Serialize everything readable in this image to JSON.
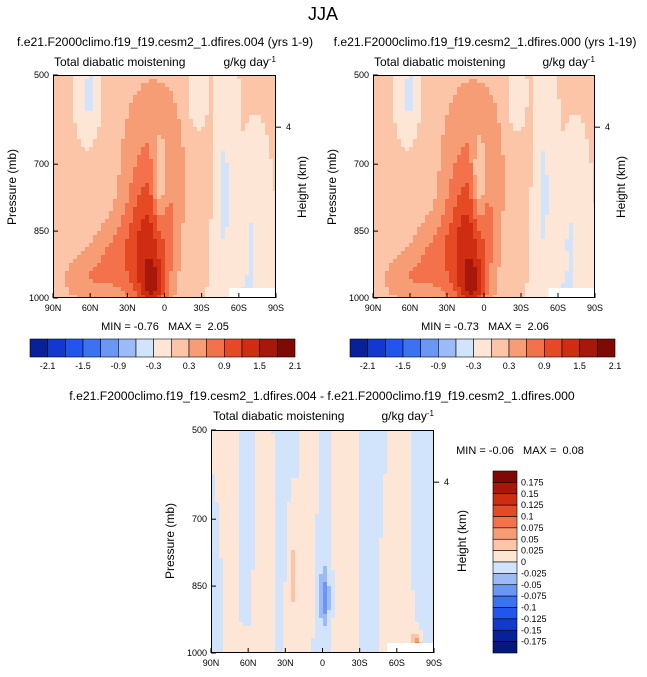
{
  "figure_title": "JJA",
  "chart_data": [
    {
      "type": "contour",
      "id": "top_left",
      "title": "f.e21.F2000climo.f19_f19.cesm2_1.dfires.004 (yrs 1-9)",
      "left_label": "Total diabatic moistening",
      "units_label": "g/kg day",
      "units_exp": "-1",
      "xlabel": "",
      "ylabel": "Pressure (mb)",
      "ylabel_right": "Height (km)",
      "x_ticks": [
        "90N",
        "60N",
        "30N",
        "0",
        "30S",
        "60S",
        "90S"
      ],
      "x_range": [
        90,
        -90
      ],
      "y_ticks": [
        500,
        700,
        850,
        1000
      ],
      "y_range": [
        500,
        1000
      ],
      "height_ticks": [
        4
      ],
      "height_tick_pressure": 617,
      "stats": "MIN = -0.76   MAX =  2.05",
      "levels": [
        -2.1,
        -1.8,
        -1.5,
        -1.2,
        -0.9,
        -0.6,
        -0.3,
        0,
        0.3,
        0.6,
        0.9,
        1.2,
        1.5,
        1.8,
        2.1
      ],
      "blobs": [
        {
          "lat": 8,
          "p": 650,
          "slat": 24,
          "sp": 150,
          "amp": 0.45
        },
        {
          "lat": 12,
          "p": 885,
          "slat": 14,
          "sp": 120,
          "amp": 1.15
        },
        {
          "lat": 10,
          "p": 975,
          "slat": 7,
          "sp": 40,
          "amp": 0.7
        },
        {
          "lat": 42,
          "p": 920,
          "slat": 16,
          "sp": 70,
          "amp": 0.55
        },
        {
          "lat": 68,
          "p": 960,
          "slat": 14,
          "sp": 40,
          "amp": 0.4
        },
        {
          "lat": 4,
          "p": 740,
          "slat": 4,
          "sp": 70,
          "amp": -0.8
        },
        {
          "lat": -48,
          "p": 760,
          "slat": 5,
          "sp": 150,
          "amp": -0.4
        },
        {
          "lat": -70,
          "p": 880,
          "slat": 5,
          "sp": 90,
          "amp": -0.35
        },
        {
          "lat": 60,
          "p": 545,
          "slat": 5,
          "sp": 55,
          "amp": -0.45
        },
        {
          "lat": -25,
          "p": 560,
          "slat": 6,
          "sp": 60,
          "amp": -0.3
        },
        {
          "lat": -60,
          "p": 985,
          "slat": 10,
          "sp": 30,
          "amp": -0.25
        }
      ]
    },
    {
      "type": "contour",
      "id": "top_right",
      "title": "f.e21.F2000climo.f19_f19.cesm2_1.dfires.000 (yrs 1-19)",
      "left_label": "Total diabatic moistening",
      "units_label": "g/kg day",
      "units_exp": "-1",
      "xlabel": "",
      "ylabel": "Pressure (mb)",
      "ylabel_right": "Height (km)",
      "x_ticks": [
        "90N",
        "60N",
        "30N",
        "0",
        "30S",
        "60S",
        "90S"
      ],
      "x_range": [
        90,
        -90
      ],
      "y_ticks": [
        500,
        700,
        850,
        1000
      ],
      "y_range": [
        500,
        1000
      ],
      "height_ticks": [
        4
      ],
      "height_tick_pressure": 617,
      "stats": "MIN = -0.73   MAX =  2.06",
      "levels": [
        -2.1,
        -1.8,
        -1.5,
        -1.2,
        -0.9,
        -0.6,
        -0.3,
        0,
        0.3,
        0.6,
        0.9,
        1.2,
        1.5,
        1.8,
        2.1
      ],
      "blobs": [
        {
          "lat": 8,
          "p": 650,
          "slat": 24,
          "sp": 150,
          "amp": 0.45
        },
        {
          "lat": 12,
          "p": 885,
          "slat": 14,
          "sp": 120,
          "amp": 1.15
        },
        {
          "lat": 10,
          "p": 975,
          "slat": 7,
          "sp": 40,
          "amp": 0.72
        },
        {
          "lat": 42,
          "p": 920,
          "slat": 16,
          "sp": 70,
          "amp": 0.55
        },
        {
          "lat": 68,
          "p": 960,
          "slat": 14,
          "sp": 40,
          "amp": 0.4
        },
        {
          "lat": 4,
          "p": 740,
          "slat": 4,
          "sp": 70,
          "amp": -0.78
        },
        {
          "lat": -48,
          "p": 760,
          "slat": 5,
          "sp": 150,
          "amp": -0.4
        },
        {
          "lat": -70,
          "p": 880,
          "slat": 5,
          "sp": 90,
          "amp": -0.35
        },
        {
          "lat": 60,
          "p": 545,
          "slat": 5,
          "sp": 55,
          "amp": -0.45
        },
        {
          "lat": -25,
          "p": 560,
          "slat": 6,
          "sp": 60,
          "amp": -0.3
        },
        {
          "lat": -60,
          "p": 985,
          "slat": 10,
          "sp": 30,
          "amp": -0.25
        }
      ]
    },
    {
      "type": "contour",
      "id": "difference",
      "title": "f.e21.F2000climo.f19_f19.cesm2_1.dfires.004 - f.e21.F2000climo.f19_f19.cesm2_1.dfires.000",
      "left_label": "Total diabatic moistening",
      "units_label": "g/kg day",
      "units_exp": "-1",
      "xlabel": "",
      "ylabel": "Pressure (mb)",
      "ylabel_right": "Height (km)",
      "x_ticks": [
        "90N",
        "60N",
        "30N",
        "0",
        "30S",
        "60S",
        "90S"
      ],
      "x_range": [
        90,
        -90
      ],
      "y_ticks": [
        500,
        700,
        850,
        1000
      ],
      "y_range": [
        500,
        1000
      ],
      "height_ticks": [
        4
      ],
      "height_tick_pressure": 617,
      "stats": "MIN = -0.06   MAX =  0.08",
      "levels": [
        -0.175,
        -0.15,
        -0.125,
        -0.1,
        -0.075,
        -0.05,
        -0.025,
        0,
        0.025,
        0.05,
        0.075,
        0.1,
        0.125,
        0.15,
        0.175
      ],
      "blobs": [
        {
          "lat": 75,
          "p": 700,
          "slat": 4,
          "sp": 250,
          "amp": 0.018
        },
        {
          "lat": 48,
          "p": 780,
          "slat": 5,
          "sp": 200,
          "amp": 0.017
        },
        {
          "lat": 25,
          "p": 820,
          "slat": 3,
          "sp": 120,
          "amp": 0.035
        },
        {
          "lat": 8,
          "p": 620,
          "slat": 4,
          "sp": 150,
          "amp": 0.016
        },
        {
          "lat": -20,
          "p": 800,
          "slat": 6,
          "sp": 250,
          "amp": 0.016
        },
        {
          "lat": -55,
          "p": 900,
          "slat": 6,
          "sp": 150,
          "amp": 0.018
        },
        {
          "lat": -76,
          "p": 985,
          "slat": 3,
          "sp": 20,
          "amp": 0.08
        },
        {
          "lat": 65,
          "p": 980,
          "slat": 6,
          "sp": 30,
          "amp": 0.02
        },
        {
          "lat": 62,
          "p": 620,
          "slat": 4,
          "sp": 250,
          "amp": -0.018
        },
        {
          "lat": 30,
          "p": 600,
          "slat": 5,
          "sp": 200,
          "amp": -0.015
        },
        {
          "lat": -2,
          "p": 880,
          "slat": 2.5,
          "sp": 40,
          "amp": -0.06
        },
        {
          "lat": 0,
          "p": 750,
          "slat": 4,
          "sp": 150,
          "amp": -0.02
        },
        {
          "lat": -38,
          "p": 640,
          "slat": 6,
          "sp": 250,
          "amp": -0.016
        },
        {
          "lat": -82,
          "p": 800,
          "slat": 3,
          "sp": 200,
          "amp": -0.017
        },
        {
          "lat": 85,
          "p": 900,
          "slat": 3,
          "sp": 100,
          "amp": -0.012
        }
      ]
    }
  ],
  "colorbar_top_left": {
    "labels": [
      "-2.1",
      "-1.5",
      "-0.9",
      "-0.3",
      "0.3",
      "0.9",
      "1.5",
      "2.1"
    ],
    "colors": [
      "#08209a",
      "#1238d0",
      "#2255ee",
      "#3b72f2",
      "#6a96f4",
      "#9cbaf6",
      "#d2e4fb",
      "#fde6d6",
      "#fcc5a8",
      "#f79d76",
      "#f3714b",
      "#e64a25",
      "#ce2d12",
      "#a8180a",
      "#7f0a05"
    ]
  },
  "colorbar_top_right": {
    "labels": [
      "-2.1",
      "-1.5",
      "-0.9",
      "-0.3",
      "0.3",
      "0.9",
      "1.5",
      "2.1"
    ],
    "colors": [
      "#08209a",
      "#1238d0",
      "#2255ee",
      "#3b72f2",
      "#6a96f4",
      "#9cbaf6",
      "#d2e4fb",
      "#fde6d6",
      "#fcc5a8",
      "#f79d76",
      "#f3714b",
      "#e64a25",
      "#ce2d12",
      "#a8180a",
      "#7f0a05"
    ]
  },
  "colorbar_difference": {
    "labels": [
      "0.175",
      "0.15",
      "0.125",
      "0.1",
      "0.075",
      "0.05",
      "0.025",
      "0",
      "-0.025",
      "-0.05",
      "-0.075",
      "-0.1",
      "-0.125",
      "-0.15",
      "-0.175"
    ],
    "colors": [
      "#7f0a05",
      "#a8180a",
      "#ce2d12",
      "#e64a25",
      "#f3714b",
      "#f79d76",
      "#fcc5a8",
      "#fde6d6",
      "#d2e4fb",
      "#9cbaf6",
      "#6a96f4",
      "#3b72f2",
      "#2255ee",
      "#1238d0",
      "#08209a",
      "#06187a"
    ]
  }
}
